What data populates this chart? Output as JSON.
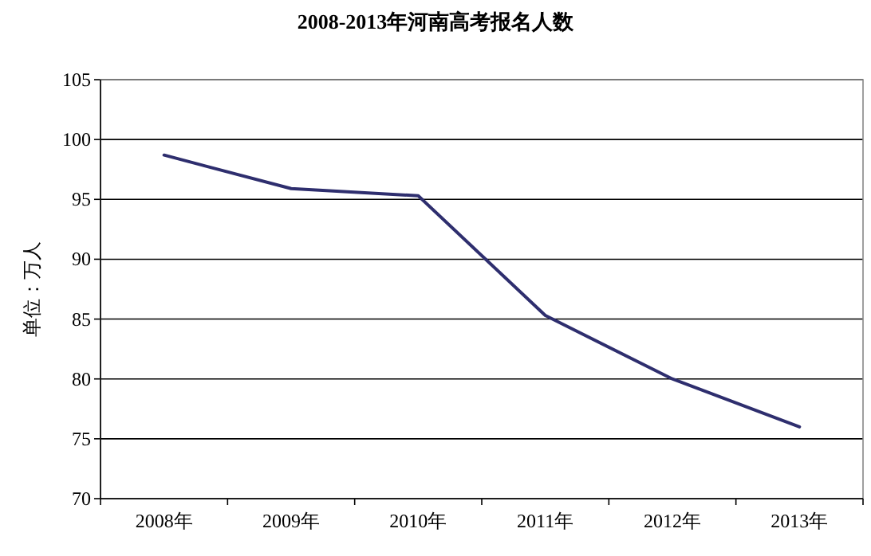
{
  "chart_data": {
    "type": "line",
    "title": "2008-2013年河南高考报名人数",
    "ylabel": "单位：万人",
    "categories": [
      "2008年",
      "2009年",
      "2010年",
      "2011年",
      "2012年",
      "2013年"
    ],
    "series": [
      {
        "color": "#2e2e6e",
        "values": [
          98.7,
          95.9,
          95.3,
          85.3,
          80.0,
          76.0
        ]
      }
    ],
    "ylim": [
      70,
      105
    ],
    "yticks": [
      70,
      75,
      80,
      85,
      90,
      95,
      100,
      105
    ],
    "grid": "y",
    "line_style": "solid",
    "marker": "none"
  }
}
